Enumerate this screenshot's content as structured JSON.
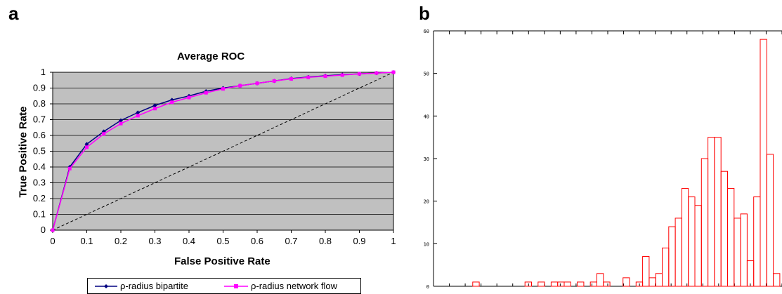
{
  "panels": {
    "a": "a",
    "b": "b"
  },
  "chart_data": [
    {
      "type": "line",
      "title": "Average ROC",
      "xlabel": "False Positive Rate",
      "ylabel": "True Positive Rate",
      "xlim": [
        0,
        1
      ],
      "ylim": [
        0,
        1
      ],
      "x_ticks": [
        "0",
        "0.1",
        "0.2",
        "0.3",
        "0.4",
        "0.5",
        "0.6",
        "0.7",
        "0.8",
        "0.9",
        "1"
      ],
      "y_ticks": [
        "0",
        "0.1",
        "0.2",
        "0.3",
        "0.4",
        "0.5",
        "0.6",
        "0.7",
        "0.8",
        "0.9",
        "1"
      ],
      "grid": "horizontal",
      "legend": "bottom",
      "plot_background": "#c0c0c0",
      "x": [
        0,
        0.05,
        0.1,
        0.15,
        0.2,
        0.25,
        0.3,
        0.35,
        0.4,
        0.45,
        0.5,
        0.55,
        0.6,
        0.65,
        0.7,
        0.75,
        0.8,
        0.85,
        0.9,
        0.95,
        1.0
      ],
      "series": [
        {
          "name": "ρ-radius bipartite",
          "color": "#000080",
          "marker": "diamond",
          "values": [
            0,
            0.4,
            0.545,
            0.625,
            0.695,
            0.745,
            0.79,
            0.825,
            0.85,
            0.88,
            0.9,
            0.915,
            0.93,
            0.945,
            0.96,
            0.97,
            0.978,
            0.985,
            0.99,
            0.995,
            1.0
          ]
        },
        {
          "name": "ρ-radius network flow",
          "color": "#ff00ff",
          "marker": "square",
          "values": [
            0,
            0.39,
            0.525,
            0.61,
            0.675,
            0.725,
            0.77,
            0.81,
            0.84,
            0.87,
            0.895,
            0.915,
            0.93,
            0.945,
            0.958,
            0.968,
            0.975,
            0.982,
            0.99,
            0.995,
            1.0
          ]
        }
      ],
      "diagonal": {
        "style": "dashed",
        "from": [
          0,
          0
        ],
        "to": [
          1,
          1
        ]
      }
    },
    {
      "type": "bar",
      "title": "",
      "xlabel": "",
      "ylabel": "",
      "ylim": [
        0,
        60
      ],
      "y_ticks": [
        "0",
        "10",
        "20",
        "30",
        "40",
        "50",
        "60"
      ],
      "bar_color": "#ff0000",
      "x_tick_count": 22,
      "bins": [
        {
          "x": 0.015,
          "v": 0
        },
        {
          "x": 0.03,
          "v": 0
        },
        {
          "x": 0.045,
          "v": 0
        },
        {
          "x": 0.06,
          "v": 0
        },
        {
          "x": 0.075,
          "v": 0
        },
        {
          "x": 0.09,
          "v": 0
        },
        {
          "x": 0.105,
          "v": 1
        },
        {
          "x": 0.12,
          "v": 0
        },
        {
          "x": 0.135,
          "v": 0
        },
        {
          "x": 0.15,
          "v": 0
        },
        {
          "x": 0.165,
          "v": 0
        },
        {
          "x": 0.18,
          "v": 0
        },
        {
          "x": 0.195,
          "v": 0
        },
        {
          "x": 0.21,
          "v": 0
        },
        {
          "x": 0.225,
          "v": 1
        },
        {
          "x": 0.24,
          "v": 0
        },
        {
          "x": 0.255,
          "v": 1
        },
        {
          "x": 0.27,
          "v": 0
        },
        {
          "x": 0.285,
          "v": 1
        },
        {
          "x": 0.3,
          "v": 1
        },
        {
          "x": 0.315,
          "v": 1
        },
        {
          "x": 0.33,
          "v": 0
        },
        {
          "x": 0.345,
          "v": 1
        },
        {
          "x": 0.36,
          "v": 0
        },
        {
          "x": 0.375,
          "v": 1
        },
        {
          "x": 0.39,
          "v": 3
        },
        {
          "x": 0.405,
          "v": 1
        },
        {
          "x": 0.42,
          "v": 0
        },
        {
          "x": 0.435,
          "v": 0
        },
        {
          "x": 0.45,
          "v": 2
        },
        {
          "x": 0.465,
          "v": 0
        },
        {
          "x": 0.48,
          "v": 1
        },
        {
          "x": 0.495,
          "v": 7
        },
        {
          "x": 0.51,
          "v": 2
        },
        {
          "x": 0.525,
          "v": 3
        },
        {
          "x": 0.54,
          "v": 9
        },
        {
          "x": 0.555,
          "v": 14
        },
        {
          "x": 0.57,
          "v": 16
        },
        {
          "x": 0.585,
          "v": 23
        },
        {
          "x": 0.6,
          "v": 21
        },
        {
          "x": 0.615,
          "v": 19
        },
        {
          "x": 0.63,
          "v": 30
        },
        {
          "x": 0.645,
          "v": 35
        },
        {
          "x": 0.66,
          "v": 35
        },
        {
          "x": 0.675,
          "v": 27
        },
        {
          "x": 0.69,
          "v": 23
        },
        {
          "x": 0.705,
          "v": 16
        },
        {
          "x": 0.72,
          "v": 17
        },
        {
          "x": 0.735,
          "v": 6
        },
        {
          "x": 0.75,
          "v": 21
        },
        {
          "x": 0.765,
          "v": 58
        },
        {
          "x": 0.78,
          "v": 31
        },
        {
          "x": 0.795,
          "v": 3
        }
      ]
    }
  ]
}
